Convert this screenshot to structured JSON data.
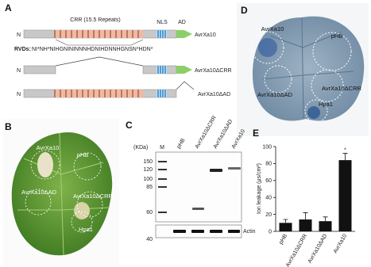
{
  "panel_a": {
    "label": "A",
    "crr_label": "CRR (15.5 Repeats)",
    "nls_label": "NLS",
    "ad_label": "AD",
    "rvd_label": "RVDs:",
    "rvd_sequence": "NI*NH*NIHGNININNNHDNIHDNNHGNSN*HDN*",
    "constructs": [
      {
        "n": "N",
        "name": "AvrXa10"
      },
      {
        "n": "N",
        "name": "AvrXa10ΔCRR"
      },
      {
        "n": "N",
        "name": "AvrXa10ΔAD"
      }
    ]
  },
  "panel_b": {
    "label": "B",
    "spots": [
      "AvrXa10",
      "pHB",
      "AvrXa10ΔAD",
      "AvrXa10ΔCRR",
      "Hpa1"
    ]
  },
  "panel_c": {
    "label": "C",
    "unit": "(KDa)",
    "marker_lane": "M",
    "markers": [
      150,
      120,
      100,
      85,
      60
    ],
    "lanes": [
      "pHB",
      "AvrXa10ΔCRR",
      "AvrXa10ΔAD",
      "AvrXa10"
    ],
    "loading_label": "Actin",
    "loading_marker": 40
  },
  "panel_d": {
    "label": "D",
    "spots": [
      "AvrXa10",
      "pHB",
      "AvrXa10ΔAD",
      "AvrXa10ΔCRR",
      "Hpa1"
    ]
  },
  "chart_data": {
    "type": "bar",
    "panel_label": "E",
    "y_label": "Ion leakage (μs/cm²)",
    "categories": [
      "pHB",
      "AvrXa10ΔCRR",
      "AvrXa10ΔAD",
      "AvrXa10"
    ],
    "values": [
      10,
      14,
      12,
      84
    ],
    "errors": [
      4,
      8,
      5,
      8
    ],
    "color": "#111111",
    "ylim": [
      0,
      100
    ],
    "yticks": [
      0,
      20,
      40,
      60,
      80,
      100
    ],
    "annotation": "*"
  }
}
